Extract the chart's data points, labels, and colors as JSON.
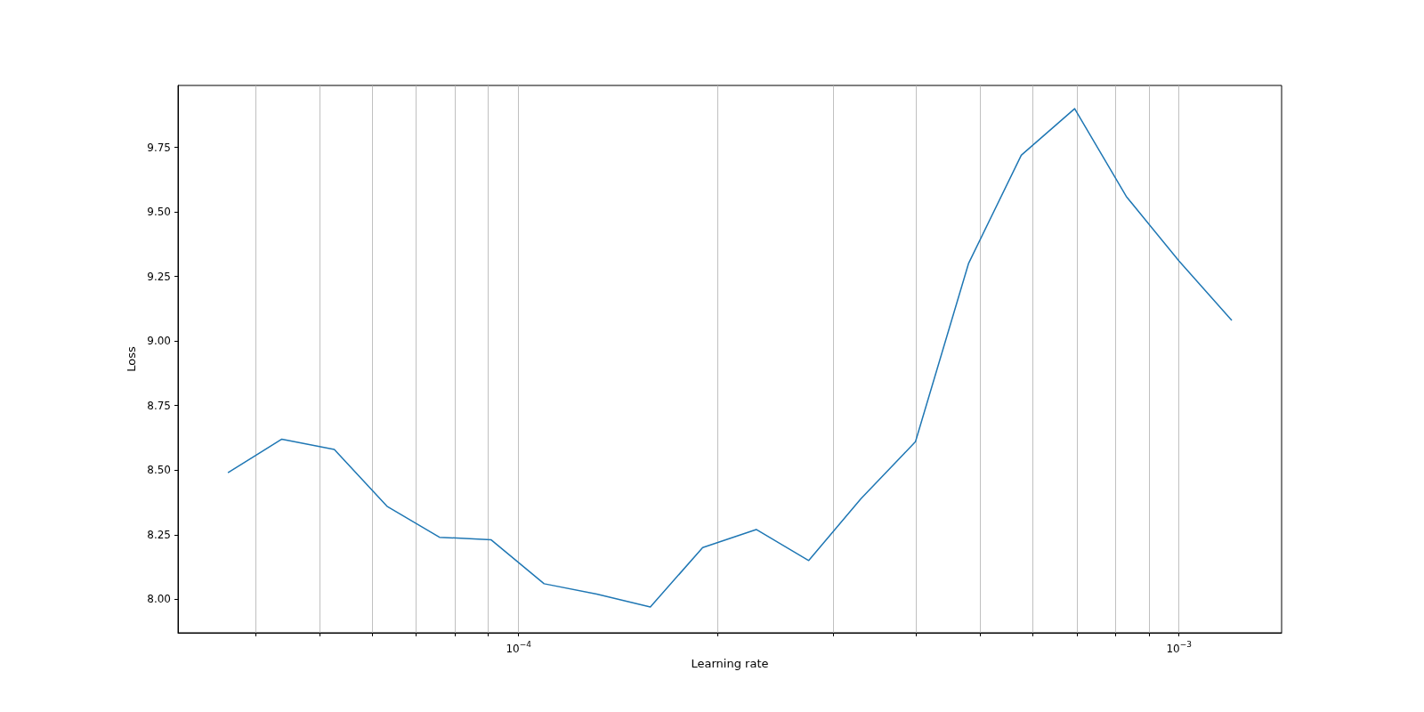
{
  "chart_data": {
    "type": "line",
    "xlabel": "Learning rate",
    "ylabel": "Loss",
    "x": [
      3.63e-05,
      4.38e-05,
      5.26e-05,
      6.32e-05,
      7.59e-05,
      9.09e-05,
      0.0001093,
      0.0001313,
      0.0001583,
      0.00019,
      0.000229,
      0.000275,
      0.00033,
      0.000399,
      0.00048,
      0.000577,
      0.000695,
      0.000832,
      0.001,
      0.001202
    ],
    "series": [
      {
        "color": "#1f77b4",
        "values": [
          8.49,
          8.62,
          8.58,
          8.36,
          8.24,
          8.23,
          8.06,
          8.02,
          7.97,
          8.2,
          8.27,
          8.15,
          8.39,
          8.61,
          9.3,
          9.72,
          9.9,
          9.56,
          9.31,
          9.08
        ]
      }
    ],
    "log": "x",
    "xlim": [
      3.05e-05,
      0.00143
    ],
    "xticks": [
      {
        "value": 4e-05,
        "label": null
      },
      {
        "value": 5e-05,
        "label": null
      },
      {
        "value": 6e-05,
        "label": null
      },
      {
        "value": 7e-05,
        "label": null
      },
      {
        "value": 8e-05,
        "label": null
      },
      {
        "value": 9e-05,
        "label": null
      },
      {
        "value": 0.0001,
        "label": "10$^{−4}$"
      },
      {
        "value": 0.0002,
        "label": null
      },
      {
        "value": 0.0003,
        "label": null
      },
      {
        "value": 0.0004,
        "label": null
      },
      {
        "value": 0.0005,
        "label": null
      },
      {
        "value": 0.0006,
        "label": null
      },
      {
        "value": 0.0007,
        "label": null
      },
      {
        "value": 0.0008,
        "label": null
      },
      {
        "value": 0.0009,
        "label": null
      },
      {
        "value": 0.001,
        "label": "10$^{−3}$"
      }
    ],
    "ylim": [
      7.87,
      9.99
    ],
    "yticks": [
      {
        "value": 8,
        "label": "8.00"
      },
      {
        "value": 8.25,
        "label": "8.25"
      },
      {
        "value": 8.5,
        "label": "8.50"
      },
      {
        "value": 8.75,
        "label": "8.75"
      },
      {
        "value": 9,
        "label": "9.00"
      },
      {
        "value": 9.25,
        "label": "9.25"
      },
      {
        "value": 9.5,
        "label": "9.50"
      },
      {
        "value": 9.75,
        "label": "9.75"
      }
    ],
    "grid": "x",
    "marker": "none",
    "line_style": "solid"
  }
}
